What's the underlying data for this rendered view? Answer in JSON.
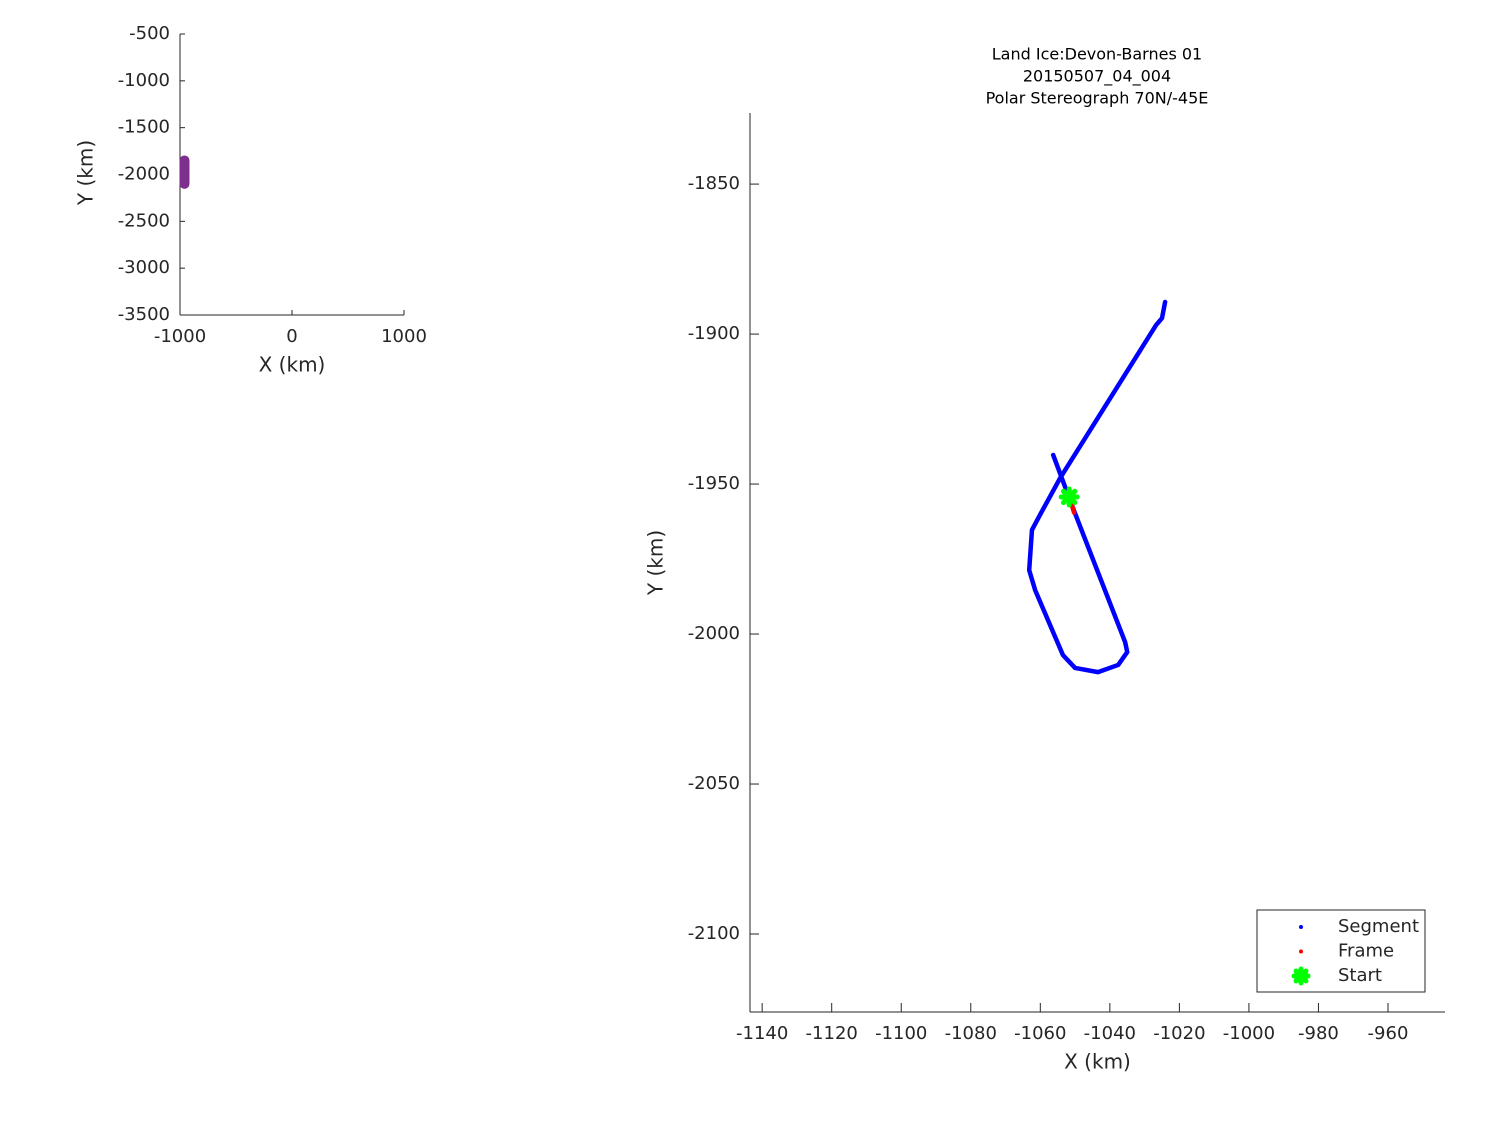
{
  "chart_data": [
    {
      "type": "line",
      "x": [
        -960,
        -960
      ],
      "values": [
        -1850,
        -2100
      ],
      "color": "#7e2f8e",
      "xlabel": "X (km)",
      "ylabel": "Y (km)",
      "xlim": [
        -1000,
        1000
      ],
      "ylim": [
        -3500,
        -500
      ],
      "xticks": [
        -1000,
        0,
        1000
      ],
      "yticks": [
        -500,
        -1000,
        -1500,
        -2000,
        -2500,
        -3000,
        -3500
      ]
    },
    {
      "type": "line",
      "title": [
        "Land Ice:Devon-Barnes 01",
        "20150507_04_004",
        "Polar Stereograph 70N/-45E"
      ],
      "xlabel": "X (km)",
      "ylabel": "Y (km)",
      "xlim": [
        -1143.5,
        -943.6
      ],
      "ylim": [
        -2126,
        -1826.3
      ],
      "xticks": [
        -1140,
        -1120,
        -1100,
        -1080,
        -1060,
        -1040,
        -1020,
        -1000,
        -980,
        -960
      ],
      "yticks": [
        -1850,
        -1900,
        -1950,
        -2000,
        -2050,
        -2100
      ],
      "legend": "lower right",
      "series": [
        {
          "name": "Segment",
          "color": "#0000ff",
          "style": "line",
          "x": [
            -1056.3,
            -1050.6,
            -1035.6,
            -1035,
            -1037.6,
            -1043.4,
            -1050,
            -1053.5,
            -1061.5,
            -1063.2,
            -1062.4,
            -1060.1,
            -1054.3,
            -1026.7,
            -1025,
            -1024.1
          ],
          "values": [
            -1940.3,
            -1958,
            -2002.7,
            -2006,
            -2010.3,
            -2012.7,
            -2011.3,
            -2007,
            -1985.3,
            -1978.7,
            -1965.3,
            -1960.3,
            -1948,
            -1897,
            -1894.7,
            -1889.3
          ]
        },
        {
          "name": "Frame",
          "color": "#ff0000",
          "style": "line",
          "x": [
            -1051.4,
            -1050.3
          ],
          "values": [
            -1955,
            -1959.5
          ]
        },
        {
          "name": "Start",
          "color": "#00ff00",
          "style": "marker",
          "x": [
            -1051.7
          ],
          "values": [
            -1954.3
          ]
        }
      ]
    }
  ]
}
